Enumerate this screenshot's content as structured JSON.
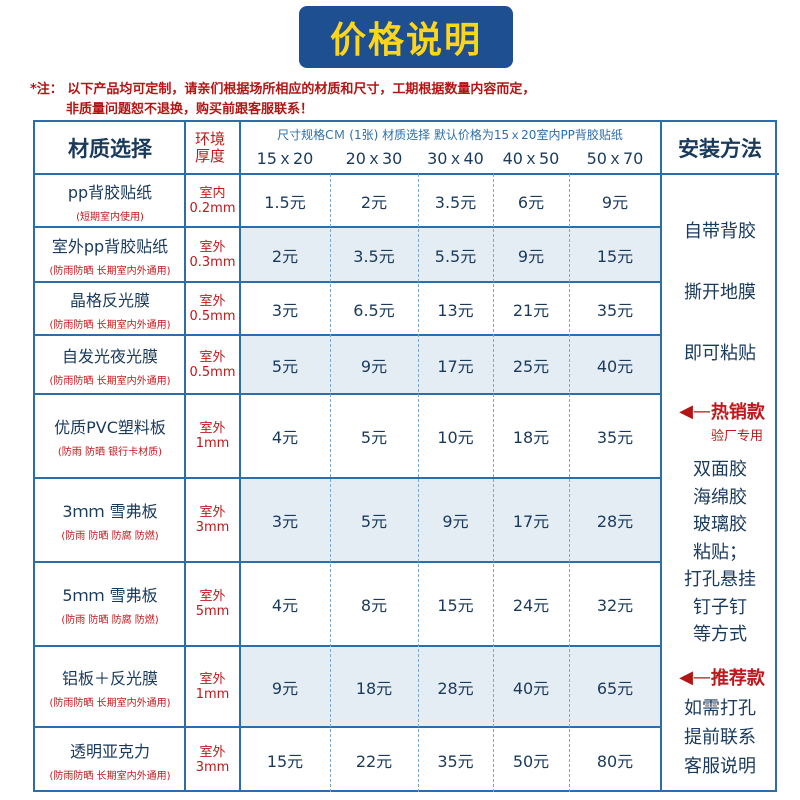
{
  "title": "价格说明",
  "notice": {
    "line1": "*注：  以下产品均可定制，请亲们根据场所相应的材质和尺寸，工期根据数量内容而定，",
    "line2": "非质量问题恕不退换，购买前跟客服联系！"
  },
  "header": {
    "material": "材质选择",
    "env_line1": "环境",
    "env_line2": "厚度",
    "spec_note": "尺寸规格CＭ (1张) 材质选择  默认价格为15ｘ20室内PP背胶贴纸",
    "sizes": [
      "15ｘ20",
      "20ｘ30",
      "30ｘ40",
      "40ｘ50",
      "50ｘ70"
    ],
    "install": "安装方法"
  },
  "rows": [
    {
      "name": "pp背胶贴纸",
      "note": "(短期室内使用)",
      "env": "室内",
      "thick": "0.2mm",
      "prices": [
        "1.5元",
        "2元",
        "3.5元",
        "6元",
        "9元"
      ]
    },
    {
      "name": "室外pp背胶贴纸",
      "note": "(防雨防晒 长期室内外通用)",
      "env": "室外",
      "thick": "0.3mm",
      "prices": [
        "2元",
        "3.5元",
        "5.5元",
        "9元",
        "15元"
      ]
    },
    {
      "name": "晶格反光膜",
      "note": "(防雨防晒 长期室内外通用)",
      "env": "室外",
      "thick": "0.5mm",
      "prices": [
        "3元",
        "6.5元",
        "13元",
        "21元",
        "35元"
      ]
    },
    {
      "name": "自发光夜光膜",
      "note": "(防雨防晒 长期室内外通用)",
      "env": "室外",
      "thick": "0.5mm",
      "prices": [
        "5元",
        "9元",
        "17元",
        "25元",
        "40元"
      ]
    },
    {
      "name": "优质PVC塑料板",
      "note": "(防雨 防晒  银行卡材质)",
      "env": "室外",
      "thick": "1mm",
      "prices": [
        "4元",
        "5元",
        "10元",
        "18元",
        "35元"
      ]
    },
    {
      "name": "3ｍｍ 雪弗板",
      "note": "(防雨 防晒  防腐 防燃)",
      "env": "室外",
      "thick": "3mm",
      "prices": [
        "3元",
        "5元",
        "9元",
        "17元",
        "28元"
      ]
    },
    {
      "name": "5ｍｍ 雪弗板",
      "note": "(防雨 防晒  防腐 防燃)",
      "env": "室外",
      "thick": "5mm",
      "prices": [
        "4元",
        "8元",
        "15元",
        "24元",
        "32元"
      ]
    },
    {
      "name": "铝板＋反光膜",
      "note": "(防雨防晒 长期室内外通用)",
      "env": "室外",
      "thick": "1mm",
      "prices": [
        "9元",
        "18元",
        "28元",
        "40元",
        "65元"
      ]
    },
    {
      "name": "透明亚克力",
      "note": "(防雨防晒 长期室内外通用)",
      "env": "室外",
      "thick": "3mm",
      "prices": [
        "15元",
        "22元",
        "35元",
        "50元",
        "80元"
      ]
    }
  ],
  "install": {
    "block1": [
      "自带背胶",
      "撕开地膜",
      "即可粘贴"
    ],
    "hot_label": "热销款",
    "hot_sub": "验厂专用",
    "block2": [
      "双面胶",
      "海绵胶",
      "玻璃胶",
      "粘贴；",
      "打孔悬挂",
      "钉子钉",
      "等方式"
    ],
    "rec_label": "推荐款",
    "block3": [
      "如需打孔",
      "提前联系",
      "客服说明"
    ]
  }
}
